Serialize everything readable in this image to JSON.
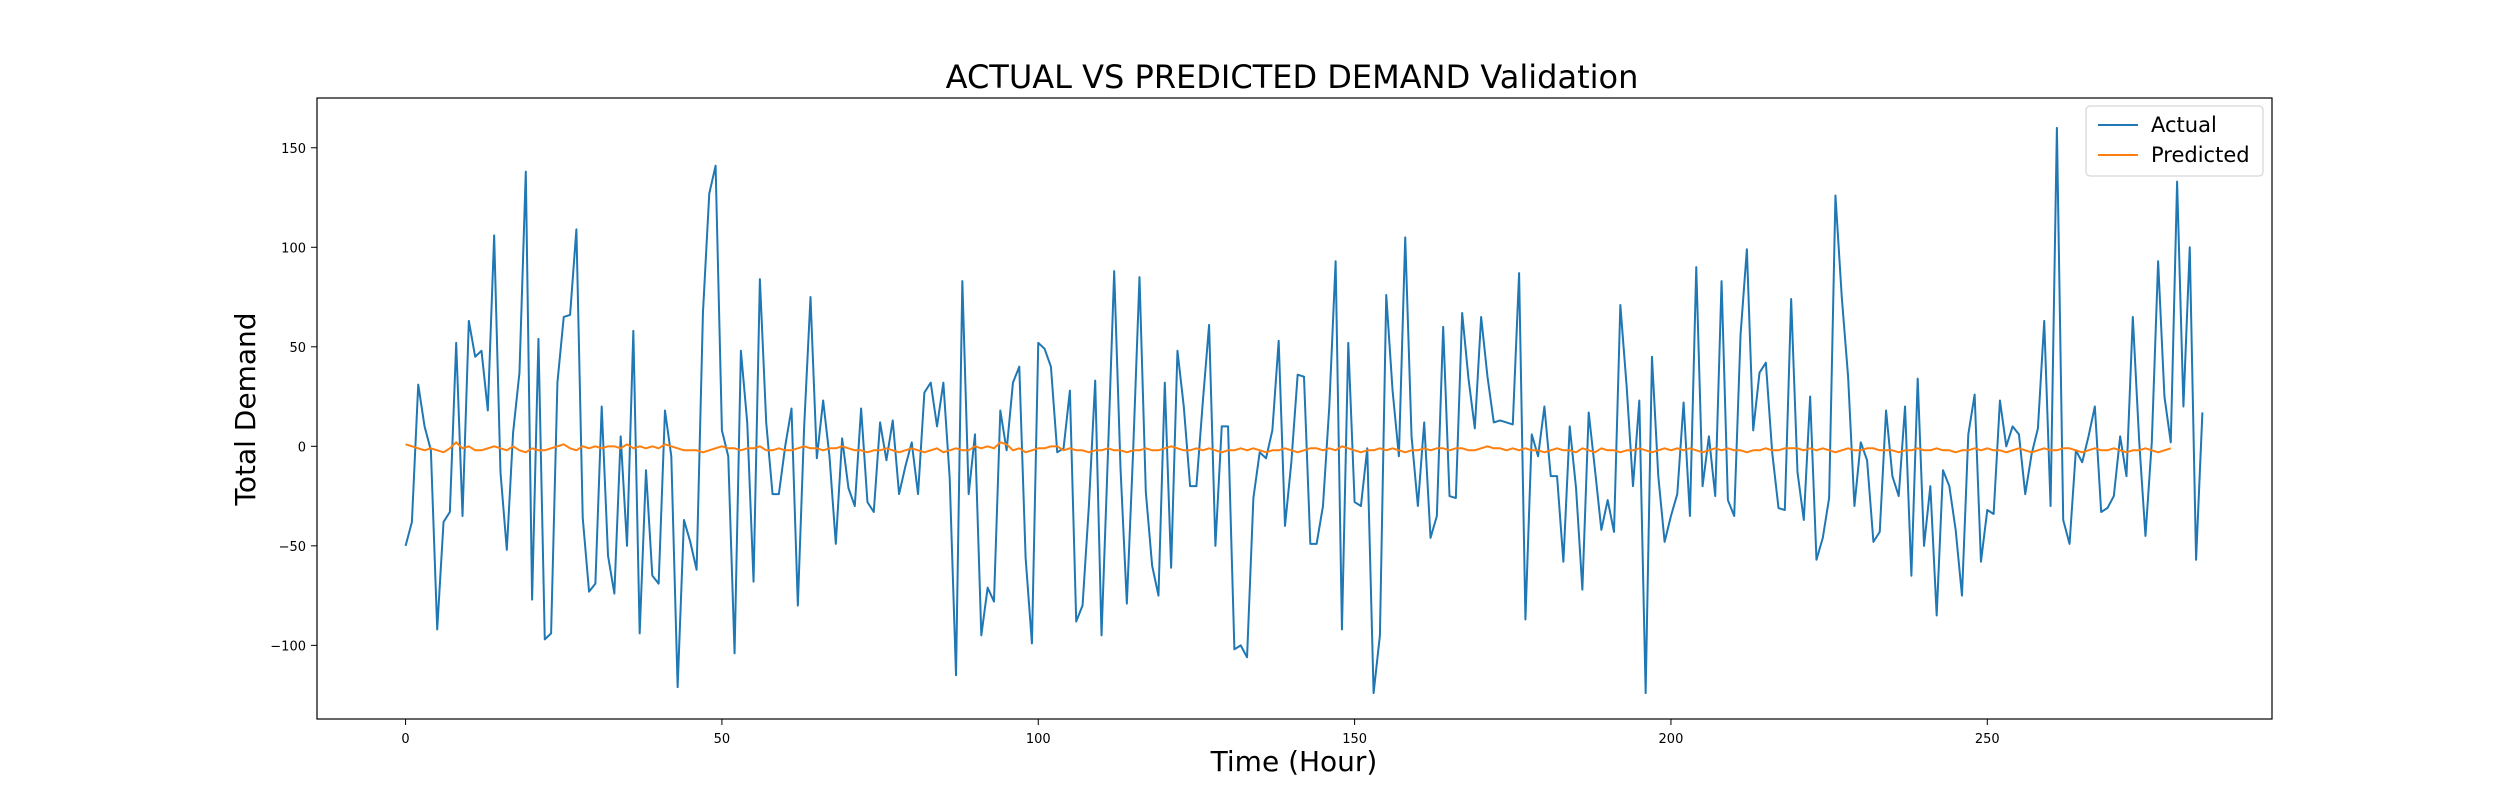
{
  "chart_data": {
    "type": "line",
    "title": "ACTUAL VS PREDICTED DEMAND Validation",
    "xlabel": "Time (Hour)",
    "ylabel": "Total Demand",
    "xlim": [
      -14,
      295
    ],
    "ylim": [
      -137,
      175
    ],
    "xticks": [
      0,
      50,
      100,
      150,
      200,
      250
    ],
    "yticks": [
      -100,
      -50,
      0,
      50,
      100,
      150
    ],
    "grid": false,
    "legend_position": "top-right",
    "x_start": 0,
    "x_step": 1,
    "series": [
      {
        "name": "Actual",
        "color": "#1f77b4",
        "values": [
          -50,
          -38,
          31,
          10,
          -2,
          -92,
          -38,
          -33,
          52,
          -35,
          63,
          45,
          48,
          18,
          106,
          -13,
          -52,
          7,
          37,
          138,
          -77,
          54,
          -97,
          -94,
          32,
          65,
          66,
          109,
          -36,
          -73,
          -69,
          20,
          -55,
          -74,
          5,
          -50,
          58,
          -94,
          -12,
          -65,
          -69,
          18,
          -5,
          -121,
          -37,
          -48,
          -62,
          67,
          127,
          141,
          8,
          -5,
          -104,
          48,
          12,
          -68,
          84,
          12,
          -24,
          -24,
          0,
          19,
          -80,
          10,
          75,
          -6,
          23,
          -5,
          -49,
          4,
          -21,
          -30,
          19,
          -28,
          -33,
          12,
          -7,
          13,
          -24,
          -10,
          2,
          -24,
          27,
          32,
          10,
          32,
          -16,
          -115,
          83,
          -24,
          6,
          -95,
          -71,
          -78,
          18,
          -2,
          32,
          40,
          -56,
          -99,
          52,
          49,
          40,
          -3,
          -1,
          28,
          -88,
          -80,
          -30,
          33,
          -95,
          -5,
          88,
          -11,
          -79,
          -2,
          85,
          -23,
          -60,
          -75,
          32,
          -61,
          48,
          20,
          -20,
          -20,
          22,
          61,
          -50,
          10,
          10,
          -102,
          -100,
          -106,
          -26,
          -3,
          -6,
          8,
          53,
          -40,
          -8,
          36,
          35,
          -49,
          -49,
          -30,
          20,
          93,
          -92,
          52,
          -28,
          -30,
          -1,
          -124,
          -95,
          76,
          28,
          -5,
          105,
          5,
          -30,
          12,
          -46,
          -35,
          60,
          -25,
          -26,
          67,
          34,
          9,
          65,
          35,
          12,
          13,
          12,
          11,
          87,
          -87,
          6,
          -5,
          20,
          -15,
          -15,
          -58,
          10,
          -21,
          -72,
          17,
          -12,
          -42,
          -27,
          -43,
          71,
          30,
          -20,
          23,
          -124,
          45,
          -15,
          -48,
          -35,
          -24,
          22,
          -35,
          90,
          -20,
          5,
          -25,
          83,
          -27,
          -35,
          56,
          99,
          8,
          37,
          42,
          -3,
          -31,
          -32,
          74,
          -13,
          -37,
          25,
          -57,
          -46,
          -26,
          126,
          75,
          35,
          -30,
          2,
          -7,
          -48,
          -43,
          18,
          -15,
          -25,
          20,
          -65,
          34,
          -50,
          -20,
          -85,
          -12,
          -20,
          -42,
          -75,
          6,
          26,
          -58,
          -32,
          -34,
          23,
          0,
          10,
          6,
          -24,
          -4,
          9,
          63,
          -30,
          160,
          -37,
          -49,
          -2,
          -8,
          5,
          20,
          -33,
          -31,
          -25,
          5,
          -15,
          65,
          3,
          -45,
          2,
          93,
          25,
          2,
          133,
          20,
          100,
          -57,
          17
        ]
      },
      {
        "name": "Predicted",
        "color": "#ff7f0e",
        "values": [
          1,
          0,
          -1,
          -2,
          -1,
          -2,
          -3,
          -1,
          2,
          -1,
          0,
          -2,
          -2,
          -1,
          0,
          -1,
          -2,
          0,
          -2,
          -3,
          -1,
          -2,
          -2,
          -1,
          0,
          1,
          -1,
          -2,
          0,
          -1,
          0,
          -1,
          0,
          0,
          -1,
          1,
          -1,
          0,
          -1,
          0,
          -1,
          1,
          0,
          -1,
          -2,
          -2,
          -2,
          -3,
          -2,
          -1,
          0,
          -1,
          -1,
          -2,
          -1,
          -1,
          0,
          -2,
          -2,
          -1,
          -2,
          -2,
          -1,
          0,
          -1,
          -1,
          -2,
          -1,
          -1,
          0,
          -1,
          -2,
          -2,
          -3,
          -2,
          -2,
          -1,
          -2,
          -3,
          -2,
          -1,
          -2,
          -3,
          -2,
          -1,
          -3,
          -2,
          -1,
          -2,
          -2,
          0,
          -1,
          0,
          -1,
          2,
          1,
          -2,
          -1,
          -3,
          -2,
          -1,
          -1,
          0,
          0,
          -2,
          -1,
          -2,
          -2,
          -3,
          -2,
          -2,
          -1,
          -2,
          -2,
          -3,
          -2,
          -2,
          -1,
          -2,
          -2,
          -1,
          0,
          -1,
          -2,
          -2,
          -1,
          -2,
          -1,
          -2,
          -3,
          -2,
          -2,
          -1,
          -2,
          -1,
          -2,
          -3,
          -2,
          -2,
          -1,
          -2,
          -3,
          -2,
          -1,
          -1,
          -2,
          -1,
          -2,
          0,
          -1,
          -2,
          -3,
          -2,
          -2,
          -1,
          -2,
          -1,
          -2,
          -3,
          -2,
          -2,
          -1,
          -2,
          -1,
          -1,
          -2,
          -1,
          -1,
          -2,
          -2,
          -1,
          0,
          -1,
          -1,
          -2,
          -1,
          -2,
          -1,
          -2,
          -2,
          -3,
          -2,
          -1,
          -2,
          -2,
          -3,
          -1,
          -2,
          -3,
          -1,
          -2,
          -2,
          -3,
          -2,
          -2,
          -1,
          -2,
          -3,
          -2,
          -1,
          -2,
          -1,
          -2,
          -1,
          -2,
          -3,
          -2,
          -1,
          -2,
          -1,
          -2,
          -2,
          -3,
          -2,
          -2,
          -1,
          -2,
          -2,
          -1,
          -1,
          -1,
          -2,
          -1,
          -2,
          -1,
          -2,
          -3,
          -2,
          -1,
          -2,
          -2,
          -1,
          -1,
          -2,
          -2,
          -2,
          -3,
          -2,
          -2,
          -1,
          -2,
          -2,
          -1,
          -2,
          -2,
          -3,
          -2,
          -2,
          -1,
          -2,
          -1,
          -2,
          -2,
          -3,
          -2,
          -1,
          -2,
          -3,
          -2,
          -1,
          -2,
          -2,
          -1,
          -1,
          -2,
          -3,
          -2,
          -1,
          -2,
          -2,
          -1,
          -2,
          -3,
          -2,
          -2,
          -1,
          -2,
          -3,
          -2,
          -1
        ]
      }
    ]
  }
}
